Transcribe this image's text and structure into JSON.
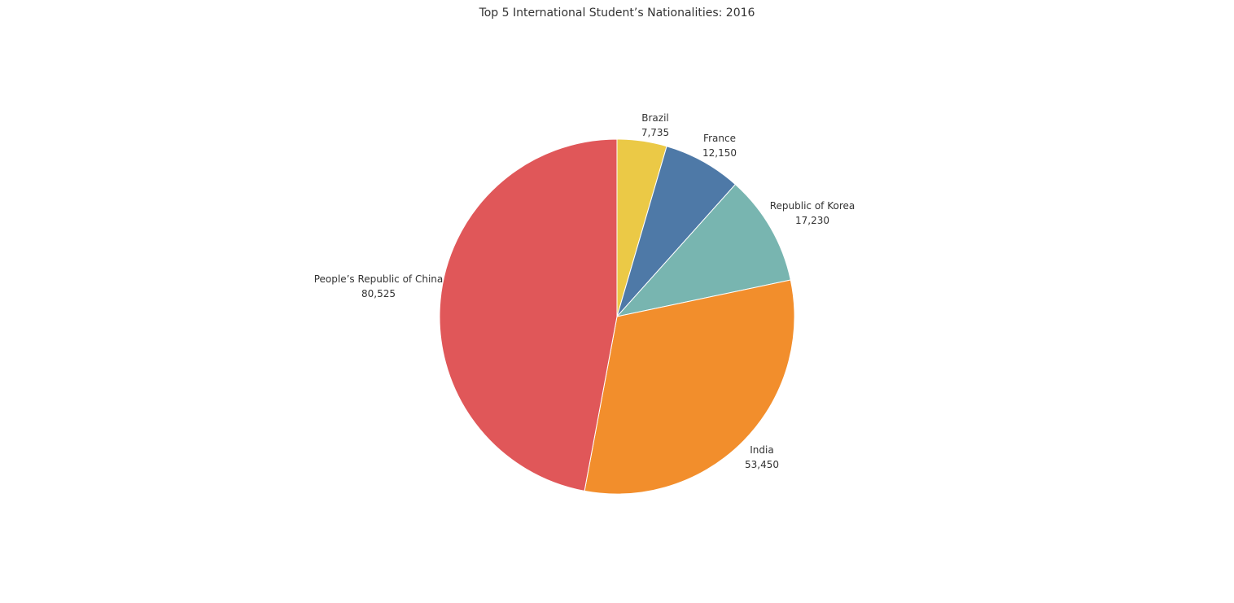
{
  "chart_data": {
    "type": "pie",
    "title": "Top 5 International Student’s Nationalities: 2016",
    "slices": [
      {
        "label": "Brazil",
        "value": 7735,
        "value_label": "7,735",
        "color": "#EBC946"
      },
      {
        "label": "France",
        "value": 12150,
        "value_label": "12,150",
        "color": "#4E79A7"
      },
      {
        "label": "Republic of Korea",
        "value": 17230,
        "value_label": "17,230",
        "color": "#78B5B0"
      },
      {
        "label": "India",
        "value": 53450,
        "value_label": "53,450",
        "color": "#F28E2C"
      },
      {
        "label": "People’s Republic of China",
        "value": 80525,
        "value_label": "80,525",
        "color": "#E05759"
      }
    ],
    "start_angle": "12 o'clock",
    "direction": "clockwise",
    "legend": "none"
  }
}
